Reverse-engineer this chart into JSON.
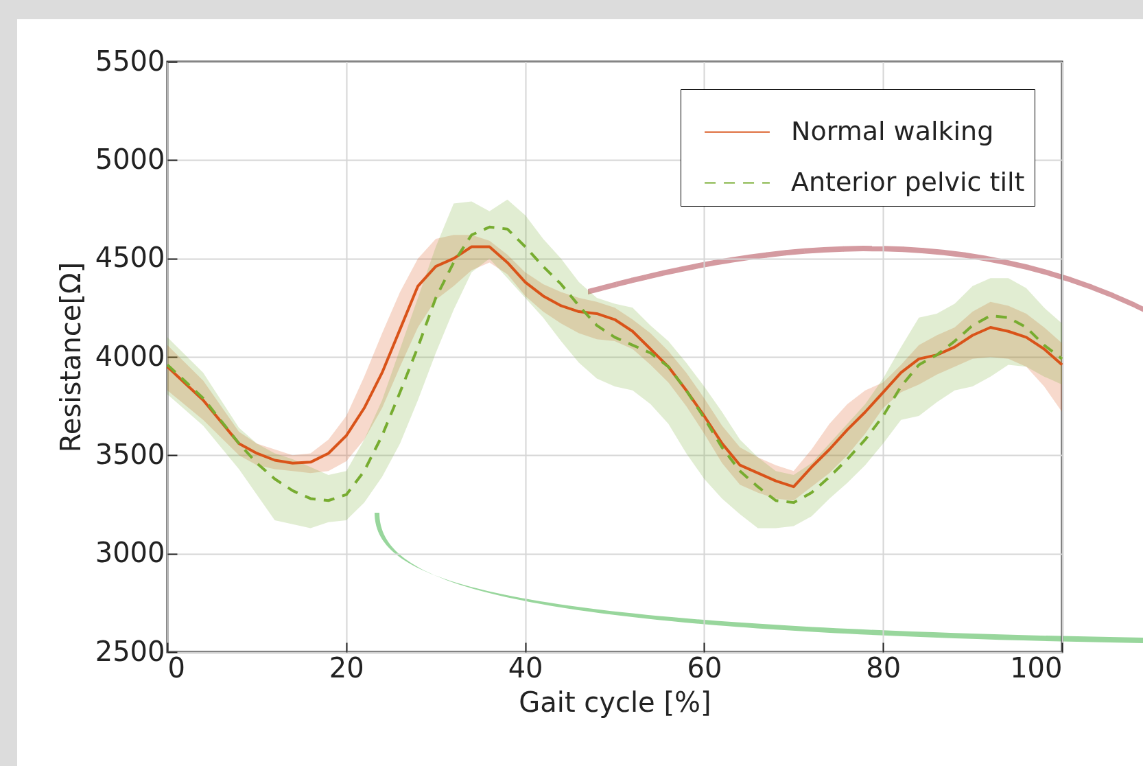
{
  "chart_data": {
    "type": "line",
    "xlabel": "Gait cycle [%]",
    "ylabel": "Resistance[Ω]",
    "x": [
      0,
      4,
      8,
      10,
      12,
      14,
      16,
      18,
      20,
      22,
      24,
      26,
      28,
      30,
      32,
      34,
      36,
      38,
      40,
      42,
      44,
      46,
      48,
      50,
      52,
      54,
      56,
      58,
      60,
      62,
      64,
      66,
      68,
      70,
      72,
      74,
      76,
      78,
      80,
      82,
      84,
      86,
      88,
      90,
      92,
      94,
      96,
      98,
      100
    ],
    "series": [
      {
        "name": "Normal walking",
        "color": "#d95319",
        "line_style": "solid",
        "values": [
          3950,
          3780,
          3560,
          3510,
          3475,
          3460,
          3465,
          3510,
          3600,
          3740,
          3920,
          4140,
          4360,
          4460,
          4500,
          4560,
          4560,
          4480,
          4380,
          4310,
          4260,
          4230,
          4220,
          4190,
          4130,
          4040,
          3950,
          3830,
          3700,
          3560,
          3450,
          3410,
          3370,
          3340,
          3440,
          3530,
          3630,
          3720,
          3820,
          3920,
          3990,
          4010,
          4050,
          4110,
          4150,
          4130,
          4100,
          4040,
          3960
        ],
        "upper": [
          4060,
          3880,
          3620,
          3560,
          3530,
          3500,
          3510,
          3580,
          3700,
          3900,
          4120,
          4330,
          4500,
          4600,
          4620,
          4620,
          4590,
          4520,
          4430,
          4370,
          4330,
          4300,
          4280,
          4250,
          4190,
          4120,
          4030,
          3920,
          3790,
          3650,
          3540,
          3490,
          3450,
          3420,
          3530,
          3660,
          3760,
          3830,
          3870,
          3960,
          4060,
          4110,
          4150,
          4230,
          4280,
          4260,
          4220,
          4150,
          4070
        ],
        "lower": [
          3830,
          3680,
          3500,
          3450,
          3430,
          3420,
          3410,
          3420,
          3470,
          3580,
          3740,
          3950,
          4150,
          4290,
          4360,
          4440,
          4480,
          4420,
          4310,
          4230,
          4170,
          4120,
          4090,
          4080,
          4040,
          3960,
          3870,
          3750,
          3610,
          3460,
          3350,
          3310,
          3280,
          3270,
          3340,
          3410,
          3500,
          3610,
          3740,
          3820,
          3860,
          3910,
          3950,
          3990,
          4000,
          3990,
          3950,
          3850,
          3720
        ]
      },
      {
        "name": "Anterior pelvic tilt",
        "color": "#77ac30",
        "line_style": "dashed",
        "values": [
          3960,
          3790,
          3560,
          3460,
          3380,
          3320,
          3280,
          3270,
          3300,
          3420,
          3600,
          3820,
          4050,
          4300,
          4480,
          4620,
          4660,
          4650,
          4560,
          4460,
          4370,
          4260,
          4160,
          4100,
          4060,
          4020,
          3950,
          3830,
          3690,
          3540,
          3420,
          3340,
          3270,
          3260,
          3310,
          3390,
          3480,
          3580,
          3700,
          3850,
          3960,
          4010,
          4080,
          4160,
          4210,
          4200,
          4150,
          4060,
          3990
        ],
        "upper": [
          4100,
          3920,
          3640,
          3560,
          3510,
          3480,
          3440,
          3400,
          3420,
          3580,
          3780,
          4040,
          4300,
          4560,
          4780,
          4790,
          4740,
          4800,
          4720,
          4600,
          4500,
          4380,
          4300,
          4270,
          4250,
          4160,
          4080,
          3970,
          3850,
          3720,
          3580,
          3490,
          3420,
          3400,
          3460,
          3560,
          3660,
          3760,
          3890,
          4050,
          4200,
          4220,
          4270,
          4360,
          4400,
          4400,
          4350,
          4250,
          4170
        ],
        "lower": [
          3810,
          3650,
          3430,
          3300,
          3170,
          3150,
          3130,
          3160,
          3170,
          3260,
          3390,
          3560,
          3780,
          4020,
          4240,
          4430,
          4500,
          4400,
          4300,
          4200,
          4080,
          3970,
          3890,
          3850,
          3830,
          3760,
          3660,
          3510,
          3380,
          3280,
          3200,
          3130,
          3130,
          3140,
          3190,
          3280,
          3360,
          3450,
          3560,
          3680,
          3700,
          3770,
          3830,
          3850,
          3900,
          3960,
          3950,
          3900,
          3860
        ]
      }
    ],
    "xlim": [
      0,
      100
    ],
    "xticks": [
      0,
      20,
      40,
      60,
      80,
      100
    ],
    "ylim": [
      2500,
      5500
    ],
    "yticks": [
      2500,
      3000,
      3500,
      4000,
      4500,
      5000,
      5500
    ],
    "grid": true,
    "legend": "top right",
    "marker": "none"
  }
}
